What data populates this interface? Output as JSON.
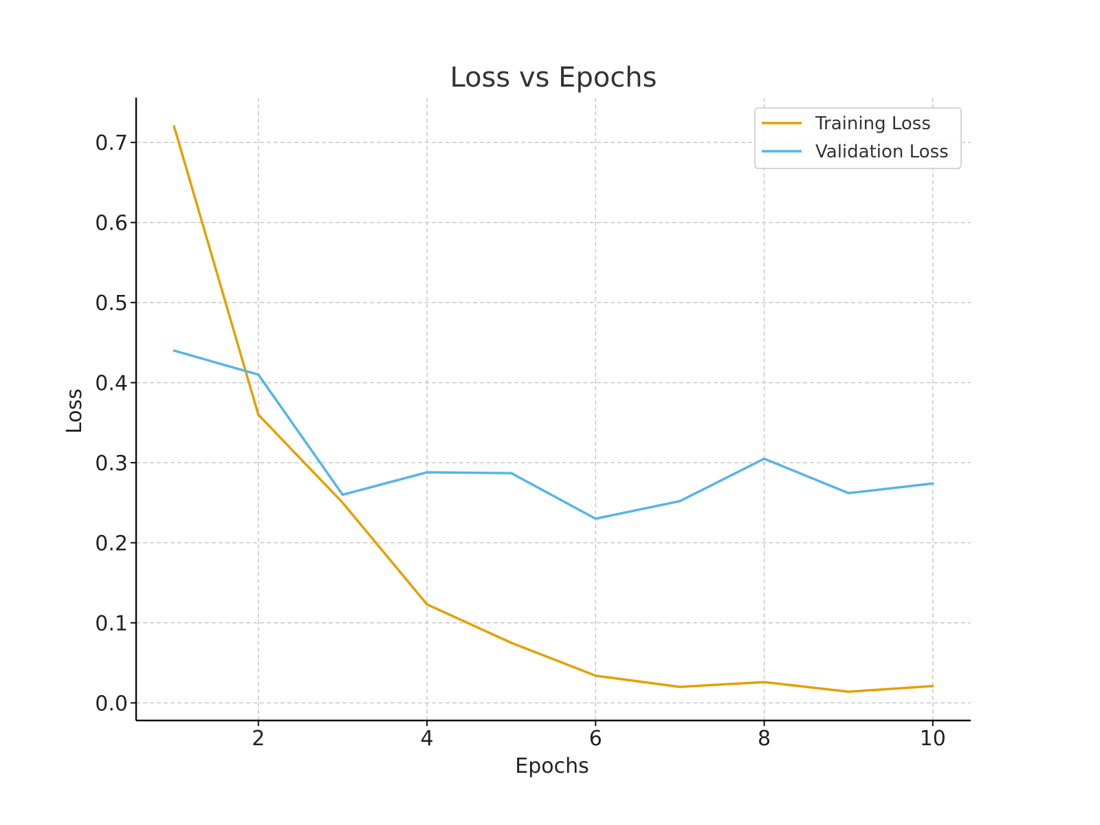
{
  "chart_data": {
    "type": "line",
    "title": "Loss vs Epochs",
    "xlabel": "Epochs",
    "ylabel": "Loss",
    "x": [
      1,
      2,
      3,
      4,
      5,
      6,
      7,
      8,
      9,
      10
    ],
    "xlim": [
      0.55,
      10.45
    ],
    "ylim": [
      -0.022,
      0.756
    ],
    "xticks": [
      2,
      4,
      6,
      8,
      10
    ],
    "xtick_labels": [
      "2",
      "4",
      "6",
      "8",
      "10"
    ],
    "yticks": [
      0.0,
      0.1,
      0.2,
      0.3,
      0.4,
      0.5,
      0.6,
      0.7
    ],
    "ytick_labels": [
      "0.0",
      "0.1",
      "0.2",
      "0.3",
      "0.4",
      "0.5",
      "0.6",
      "0.7"
    ],
    "grid": true,
    "legend_position": "top-right",
    "series": [
      {
        "name": "Training Loss",
        "color": "#E69F00",
        "values": [
          0.72,
          0.36,
          0.25,
          0.123,
          0.075,
          0.034,
          0.02,
          0.026,
          0.014,
          0.021
        ]
      },
      {
        "name": "Validation Loss",
        "color": "#56B4E9",
        "values": [
          0.44,
          0.41,
          0.26,
          0.288,
          0.287,
          0.23,
          0.252,
          0.305,
          0.262,
          0.274
        ]
      }
    ]
  }
}
